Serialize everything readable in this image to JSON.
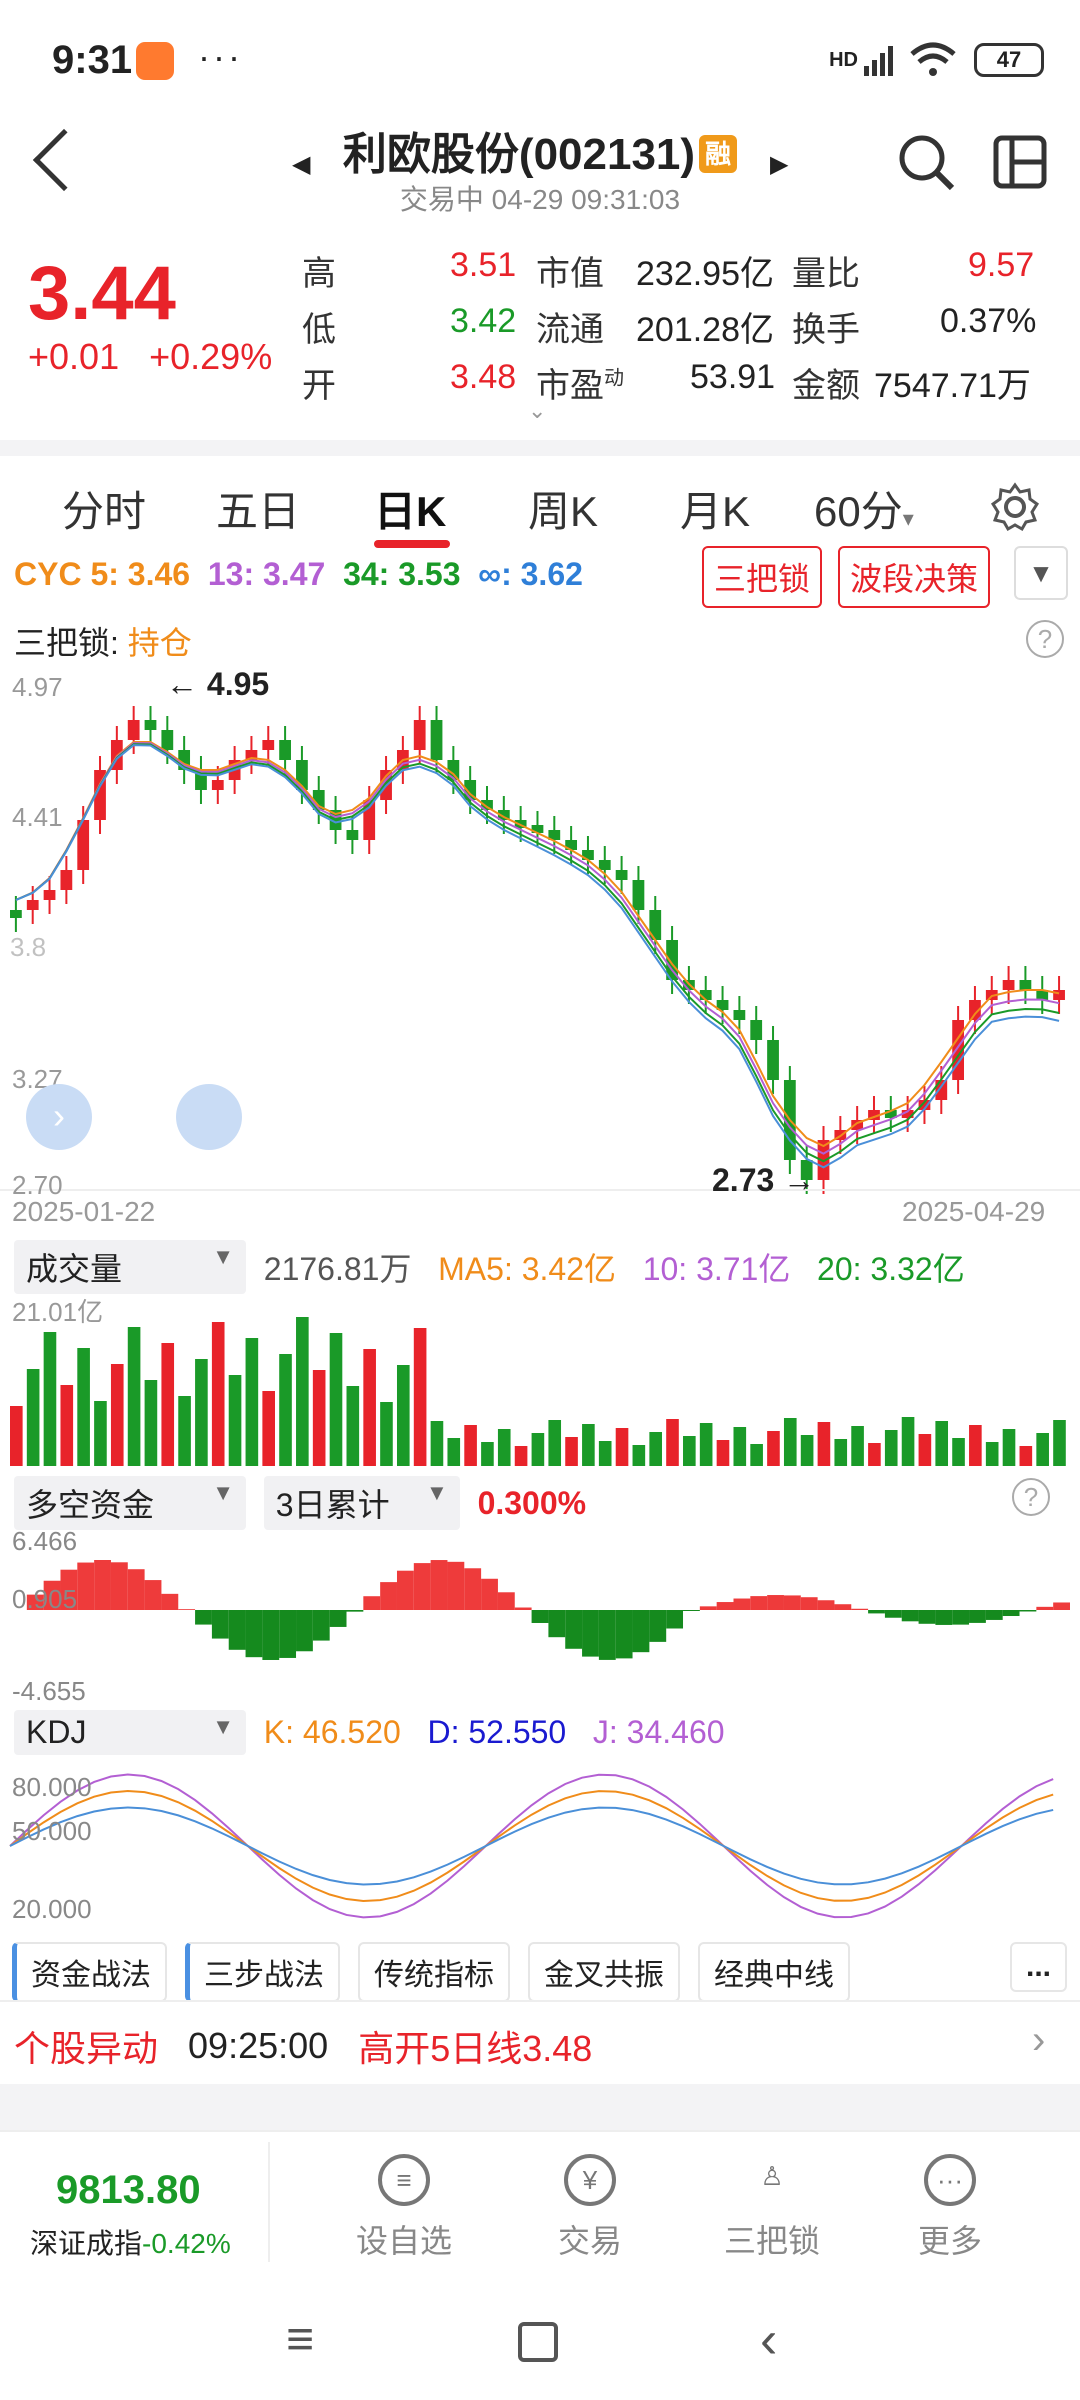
{
  "status": {
    "time": "9:31",
    "dots": "···",
    "battery": "47",
    "network": "HD"
  },
  "header": {
    "title": "利欧股份(002131)",
    "rong": "融",
    "subtitle": "交易中 04-29 09:31:03"
  },
  "quote": {
    "price": "3.44",
    "change": "+0.01",
    "change_pct": "+0.29%",
    "high_label": "高",
    "high": "3.51",
    "low_label": "低",
    "low": "3.42",
    "open_label": "开",
    "open": "3.48",
    "mcap_label": "市值",
    "mcap": "232.95亿",
    "float_label": "流通",
    "float": "201.28亿",
    "pe_label": "市盈",
    "pe_sup": "动",
    "pe": "53.91",
    "vr_label": "量比",
    "vr": "9.57",
    "turnover_label": "换手",
    "turnover": "0.37%",
    "amount_label": "金额",
    "amount": "7547.71万"
  },
  "tabs": [
    "分时",
    "五日",
    "日K",
    "周K",
    "月K",
    "60分"
  ],
  "cyc": {
    "c5": "CYC 5: 3.46",
    "c13": "13: 3.47",
    "c34": "34: 3.53",
    "cinf": "∞: 3.62",
    "btn1": "三把锁",
    "btn2": "波段决策"
  },
  "lock": {
    "label": "三把锁:",
    "state": "持仓"
  },
  "price_axis": {
    "a1": "4.97",
    "a2": "4.41",
    "a4": "3.27",
    "a5": "2.70",
    "high_mark": "4.95",
    "low_mark": "2.73",
    "partial": "3.8"
  },
  "dates": {
    "start": "2025-01-22",
    "end": "2025-04-29"
  },
  "volume": {
    "label": "成交量",
    "value": "2176.81万",
    "ma5": "MA5: 3.42亿",
    "ma10": "10: 3.71亿",
    "ma20": "20: 3.32亿",
    "top": "21.01亿"
  },
  "funds": {
    "label": "多空资金",
    "period": "3日累计",
    "value": "0.300%",
    "a1": "6.466",
    "a2": "0.905",
    "a3": "-4.655"
  },
  "kdj": {
    "label": "KDJ",
    "k": "K: 46.520",
    "d": "D: 52.550",
    "j": "J: 34.460",
    "a1": "80.000",
    "a2": "50.000",
    "a3": "20.000"
  },
  "chips": [
    "资金战法",
    "三步战法",
    "传统指标",
    "金叉共振",
    "经典中线",
    "..."
  ],
  "alert": {
    "label": "个股异动",
    "time": "09:25:00",
    "text": "高开5日线3.48"
  },
  "index": {
    "value": "9813.80",
    "name": "深证成指",
    "chg": "-0.42%"
  },
  "nav": [
    "设自选",
    "交易",
    "三把锁",
    "更多"
  ],
  "colors": {
    "up": "#e8232a",
    "down": "#1a9a28",
    "orange": "#f08c1a",
    "purple": "#b35fd3",
    "blue": "#4a8fd8"
  }
}
